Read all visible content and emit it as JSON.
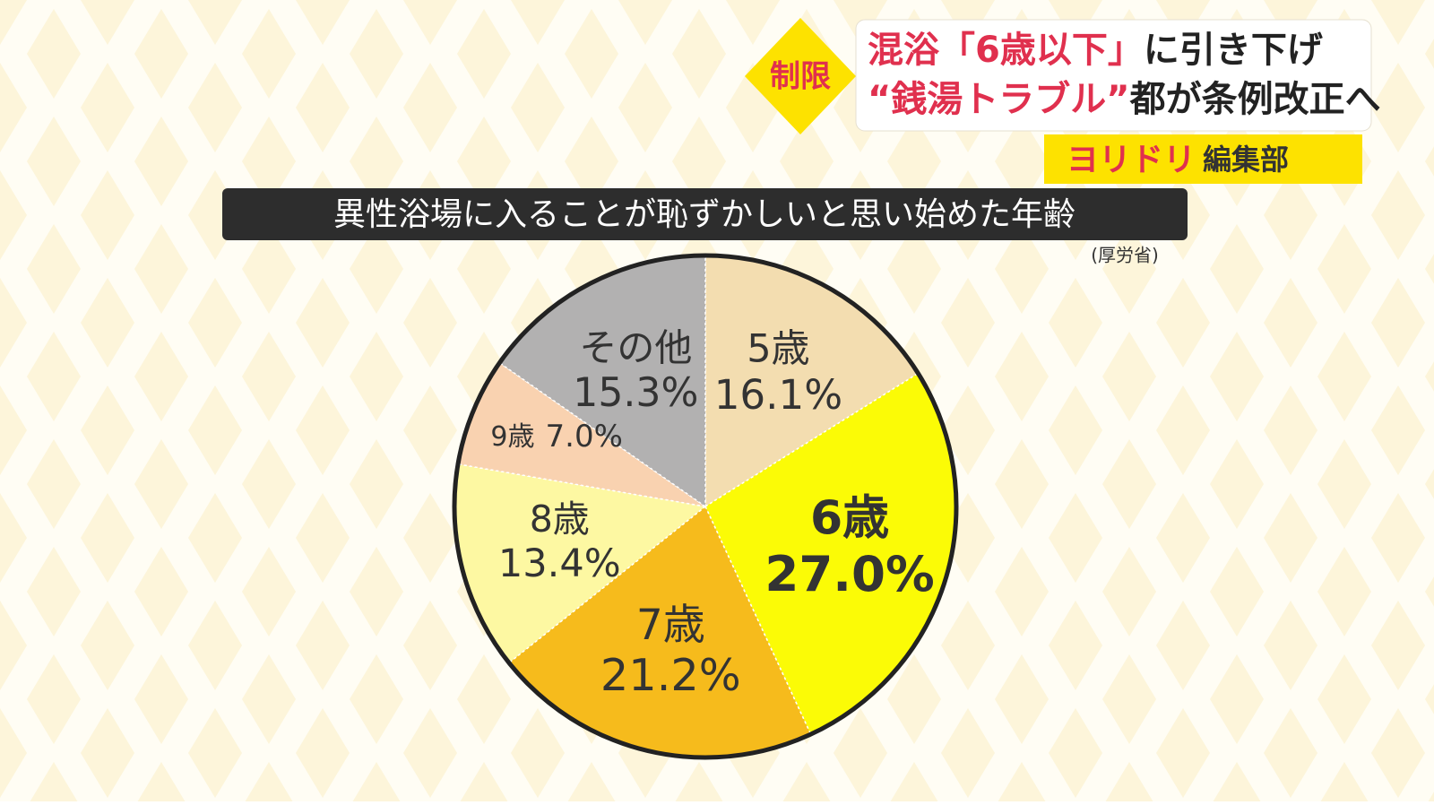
{
  "header": {
    "tag": "制限",
    "line1": [
      "混浴「6歳以下」",
      "に引き下げ"
    ],
    "line2": [
      "“銭湯トラブル”",
      "都が条例改正へ"
    ],
    "program": [
      "ヨリドリ",
      "編集部"
    ]
  },
  "chart_data": {
    "type": "pie",
    "title": "異性浴場に入ることが恥ずかしいと思い始めた年齢",
    "source": "(厚労省)",
    "categories": [
      "5歳",
      "6歳",
      "7歳",
      "8歳",
      "9歳",
      "その他"
    ],
    "values": [
      16.1,
      27.0,
      21.2,
      13.4,
      7.0,
      15.3
    ],
    "value_labels": [
      "16.1%",
      "27.0%",
      "21.2%",
      "13.4%",
      "7.0%",
      "15.3%"
    ],
    "colors": [
      "#f3ddb0",
      "#fbfb06",
      "#f6bb1c",
      "#fdf8a2",
      "#f9d2b0",
      "#b2b1b1"
    ]
  }
}
